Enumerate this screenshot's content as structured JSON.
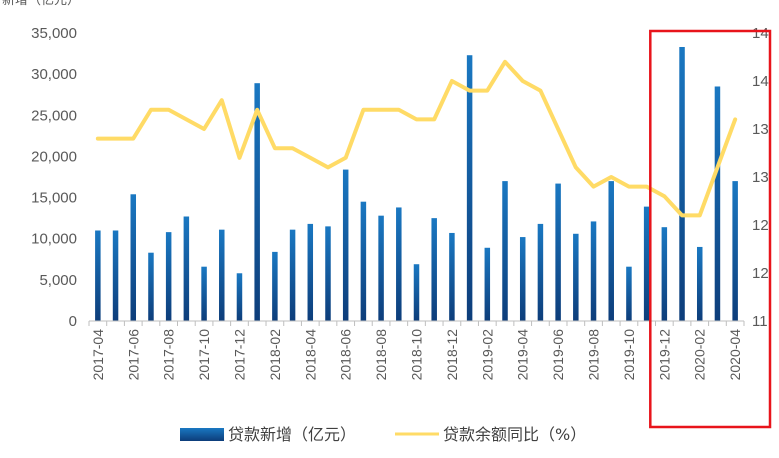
{
  "header_fragment": "新增（亿元）",
  "chart_data": {
    "type": "bar+line",
    "categories": [
      "2017-04",
      "2017-05",
      "2017-06",
      "2017-07",
      "2017-08",
      "2017-09",
      "2017-10",
      "2017-11",
      "2017-12",
      "2018-01",
      "2018-02",
      "2018-03",
      "2018-04",
      "2018-05",
      "2018-06",
      "2018-07",
      "2018-08",
      "2018-09",
      "2018-10",
      "2018-11",
      "2018-12",
      "2019-01",
      "2019-02",
      "2019-03",
      "2019-04",
      "2019-05",
      "2019-06",
      "2019-07",
      "2019-08",
      "2019-09",
      "2019-10",
      "2019-11",
      "2019-12",
      "2020-01",
      "2020-02",
      "2020-03",
      "2020-04"
    ],
    "x_tick_labels": [
      "2017-04",
      "2017-06",
      "2017-08",
      "2017-10",
      "2017-12",
      "2018-02",
      "2018-04",
      "2018-06",
      "2018-08",
      "2018-10",
      "2018-12",
      "2019-02",
      "2019-04",
      "2019-06",
      "2019-08",
      "2019-10",
      "2019-12",
      "2020-02",
      "2020-04"
    ],
    "series": [
      {
        "name": "贷款新增（亿元）",
        "type": "bar",
        "axis": "left",
        "values": [
          11000,
          11000,
          15400,
          8300,
          10800,
          12700,
          6600,
          11100,
          5800,
          28900,
          8400,
          11100,
          11800,
          11500,
          18400,
          14500,
          12800,
          13800,
          6900,
          12500,
          10700,
          32300,
          8900,
          17000,
          10200,
          11800,
          16700,
          10600,
          12100,
          17000,
          6600,
          13900,
          11400,
          33300,
          9000,
          28500,
          17000
        ]
      },
      {
        "name": "贷款余额同比（%）",
        "type": "line",
        "axis": "right",
        "values": [
          12.9,
          12.9,
          12.9,
          13.2,
          13.2,
          13.1,
          13.0,
          13.3,
          12.7,
          13.2,
          12.8,
          12.8,
          12.7,
          12.6,
          12.7,
          13.2,
          13.2,
          13.2,
          13.1,
          13.1,
          13.5,
          13.4,
          13.4,
          13.7,
          13.5,
          13.4,
          13.0,
          12.6,
          12.4,
          12.5,
          12.4,
          12.4,
          12.3,
          12.1,
          12.1,
          12.6,
          13.1
        ]
      }
    ],
    "left_axis": {
      "min": 0,
      "max": 35000,
      "ticks": [
        "0",
        "5,000",
        "10,000",
        "15,000",
        "20,000",
        "25,000",
        "30,000",
        "35,000"
      ]
    },
    "right_axis": {
      "min": 11.0,
      "max": 14.0,
      "ticks": [
        "11",
        "12",
        "12",
        "13",
        "13",
        "14",
        "14"
      ]
    },
    "colors": {
      "bar_top": "#1a78c2",
      "bar_bottom": "#0d3d7a",
      "line": "#ffdb66",
      "highlight": "#e8141b",
      "axis": "#bfbfbf",
      "tick_text": "#595959"
    },
    "highlight": {
      "from": "2019-12",
      "to": "2020-04",
      "shape": "red-rectangle"
    },
    "legend": {
      "position": "bottom",
      "entries": [
        "贷款新增（亿元）",
        "贷款余额同比（%）"
      ]
    },
    "grid": false
  }
}
